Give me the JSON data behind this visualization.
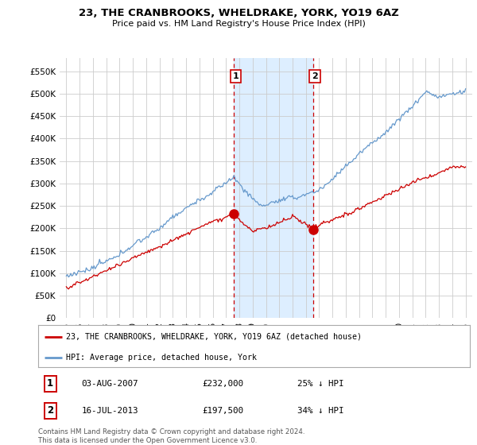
{
  "title": "23, THE CRANBROOKS, WHELDRAKE, YORK, YO19 6AZ",
  "subtitle": "Price paid vs. HM Land Registry's House Price Index (HPI)",
  "ylim": [
    0,
    580000
  ],
  "yticks": [
    0,
    50000,
    100000,
    150000,
    200000,
    250000,
    300000,
    350000,
    400000,
    450000,
    500000,
    550000
  ],
  "ytick_labels": [
    "£0",
    "£50K",
    "£100K",
    "£150K",
    "£200K",
    "£250K",
    "£300K",
    "£350K",
    "£400K",
    "£450K",
    "£500K",
    "£550K"
  ],
  "sale1_year": 2007.58,
  "sale1_price": 232000,
  "sale1_date": "03-AUG-2007",
  "sale1_pct": "25%",
  "sale2_year": 2013.54,
  "sale2_price": 197500,
  "sale2_date": "16-JUL-2013",
  "sale2_pct": "34%",
  "legend_label_red": "23, THE CRANBROOKS, WHELDRAKE, YORK, YO19 6AZ (detached house)",
  "legend_label_blue": "HPI: Average price, detached house, York",
  "footer": "Contains HM Land Registry data © Crown copyright and database right 2024.\nThis data is licensed under the Open Government Licence v3.0.",
  "red_color": "#cc0000",
  "blue_color": "#6699cc",
  "shade_color": "#ddeeff",
  "bg_color": "#ffffff",
  "grid_color": "#cccccc"
}
